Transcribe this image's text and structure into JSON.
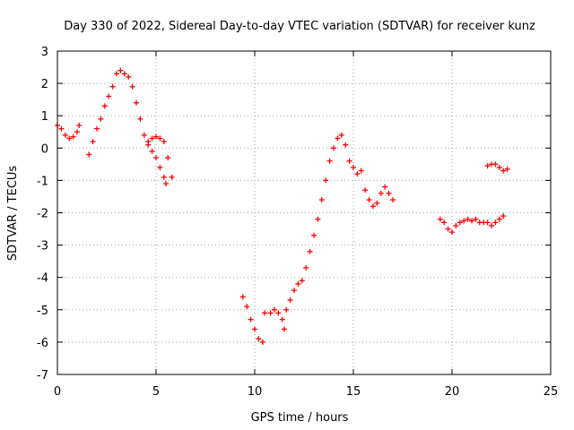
{
  "chart_data": {
    "type": "scatter",
    "title": "Day 330 of 2022, Sidereal Day-to-day VTEC variation (SDTVAR) for receiver kunz",
    "xlabel": "GPS time / hours",
    "ylabel": "SDTVAR / TECUs",
    "xlim": [
      0,
      25
    ],
    "ylim": [
      -7,
      3
    ],
    "xticks": [
      0,
      5,
      10,
      15,
      20,
      25
    ],
    "xtick_labels": [
      "0",
      "5",
      "10",
      "15",
      "20",
      "25"
    ],
    "yticks": [
      -7,
      -6,
      -5,
      -4,
      -3,
      -2,
      -1,
      0,
      1,
      2,
      3
    ],
    "ytick_labels": [
      "-7",
      "-6",
      "-5",
      "-4",
      "-3",
      "-2",
      "-1",
      "0",
      "1",
      "2",
      "3"
    ],
    "grid": true,
    "legend": "none",
    "marker": "plus",
    "color": "#ff0000",
    "series": [
      {
        "points": [
          [
            0.0,
            0.7
          ],
          [
            0.2,
            0.6
          ],
          [
            0.4,
            0.4
          ],
          [
            0.6,
            0.3
          ],
          [
            0.8,
            0.35
          ],
          [
            1.0,
            0.5
          ],
          [
            1.1,
            0.7
          ],
          [
            1.6,
            -0.2
          ],
          [
            1.8,
            0.2
          ],
          [
            2.0,
            0.6
          ],
          [
            2.2,
            0.9
          ],
          [
            2.4,
            1.3
          ],
          [
            2.6,
            1.6
          ],
          [
            2.8,
            1.9
          ],
          [
            3.0,
            2.3
          ],
          [
            3.2,
            2.4
          ],
          [
            3.4,
            2.3
          ],
          [
            3.6,
            2.2
          ],
          [
            3.8,
            1.9
          ],
          [
            4.0,
            1.4
          ],
          [
            4.2,
            0.9
          ],
          [
            4.4,
            0.4
          ],
          [
            4.6,
            0.1
          ],
          [
            4.8,
            -0.1
          ],
          [
            5.0,
            -0.3
          ],
          [
            5.2,
            -0.6
          ],
          [
            5.4,
            -0.9
          ],
          [
            5.5,
            -1.1
          ],
          [
            4.6,
            0.2
          ],
          [
            4.8,
            0.3
          ],
          [
            5.0,
            0.35
          ],
          [
            5.2,
            0.3
          ],
          [
            5.4,
            0.2
          ],
          [
            5.6,
            -0.3
          ],
          [
            5.8,
            -0.9
          ],
          [
            9.4,
            -4.6
          ],
          [
            9.6,
            -4.9
          ],
          [
            9.8,
            -5.3
          ],
          [
            10.0,
            -5.6
          ],
          [
            10.2,
            -5.9
          ],
          [
            10.4,
            -6.0
          ],
          [
            10.5,
            -5.1
          ],
          [
            10.8,
            -5.1
          ],
          [
            11.0,
            -5.0
          ],
          [
            11.2,
            -5.1
          ],
          [
            11.4,
            -5.3
          ],
          [
            11.5,
            -5.6
          ],
          [
            11.6,
            -5.0
          ],
          [
            11.8,
            -4.7
          ],
          [
            12.0,
            -4.4
          ],
          [
            12.2,
            -4.2
          ],
          [
            12.4,
            -4.1
          ],
          [
            12.6,
            -3.7
          ],
          [
            12.8,
            -3.2
          ],
          [
            13.0,
            -2.7
          ],
          [
            13.2,
            -2.2
          ],
          [
            13.4,
            -1.6
          ],
          [
            13.6,
            -1.0
          ],
          [
            13.8,
            -0.4
          ],
          [
            14.0,
            0.0
          ],
          [
            14.2,
            0.3
          ],
          [
            14.4,
            0.4
          ],
          [
            14.6,
            0.1
          ],
          [
            14.8,
            -0.4
          ],
          [
            15.0,
            -0.6
          ],
          [
            15.2,
            -0.8
          ],
          [
            15.4,
            -0.7
          ],
          [
            15.6,
            -1.3
          ],
          [
            15.8,
            -1.6
          ],
          [
            16.0,
            -1.8
          ],
          [
            16.2,
            -1.7
          ],
          [
            16.4,
            -1.4
          ],
          [
            16.6,
            -1.2
          ],
          [
            16.8,
            -1.4
          ],
          [
            17.0,
            -1.6
          ],
          [
            19.4,
            -2.2
          ],
          [
            19.6,
            -2.3
          ],
          [
            19.8,
            -2.5
          ],
          [
            20.0,
            -2.6
          ],
          [
            20.2,
            -2.4
          ],
          [
            20.4,
            -2.3
          ],
          [
            20.6,
            -2.25
          ],
          [
            20.8,
            -2.2
          ],
          [
            21.0,
            -2.25
          ],
          [
            21.2,
            -2.2
          ],
          [
            21.4,
            -2.3
          ],
          [
            21.6,
            -2.3
          ],
          [
            21.8,
            -2.3
          ],
          [
            22.0,
            -2.4
          ],
          [
            22.2,
            -2.3
          ],
          [
            22.4,
            -2.2
          ],
          [
            22.6,
            -2.1
          ],
          [
            21.8,
            -0.55
          ],
          [
            22.0,
            -0.5
          ],
          [
            22.2,
            -0.5
          ],
          [
            22.4,
            -0.6
          ],
          [
            22.6,
            -0.7
          ],
          [
            22.8,
            -0.65
          ]
        ]
      }
    ]
  }
}
